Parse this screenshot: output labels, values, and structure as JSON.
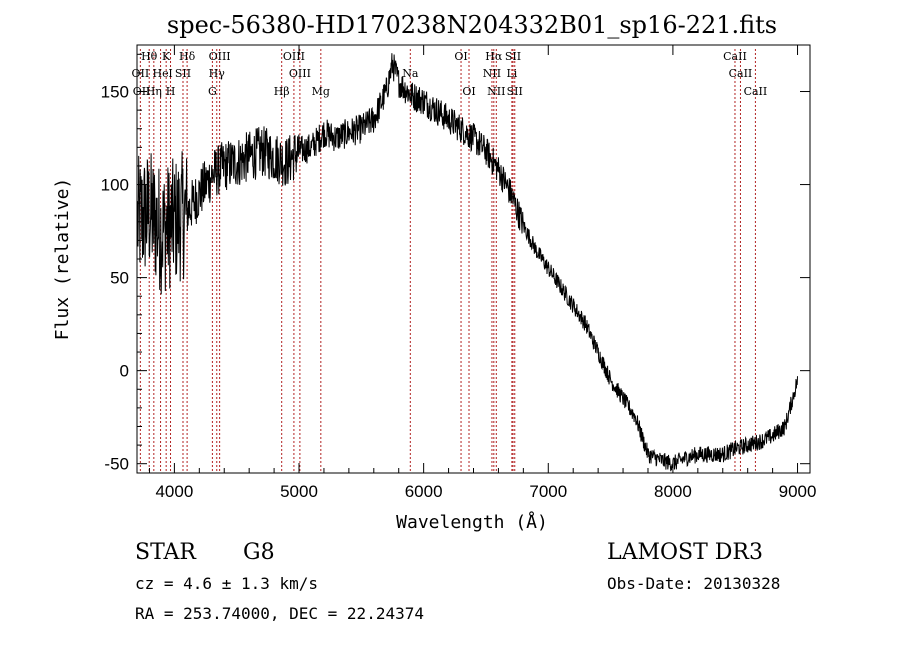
{
  "chart_data": {
    "type": "line",
    "title": "spec-56380-HD170238N204332B01_sp16-221.fits",
    "xlabel": "Wavelength (Å)",
    "ylabel": "Flux (relative)",
    "xlim": [
      3700,
      9100
    ],
    "ylim": [
      -55,
      175
    ],
    "xticks": [
      4000,
      5000,
      6000,
      7000,
      8000,
      9000
    ],
    "yticks": [
      -50,
      0,
      50,
      100,
      150
    ],
    "series": [
      {
        "name": "flux",
        "color": "#000000",
        "x": [
          3700,
          3800,
          3900,
          4000,
          4100,
          4200,
          4300,
          4400,
          4500,
          4600,
          4700,
          4800,
          4900,
          5000,
          5100,
          5200,
          5300,
          5400,
          5500,
          5600,
          5700,
          5750,
          5800,
          5900,
          6000,
          6100,
          6200,
          6300,
          6400,
          6500,
          6600,
          6700,
          6800,
          6900,
          7000,
          7100,
          7200,
          7300,
          7400,
          7500,
          7600,
          7700,
          7800,
          7900,
          8000,
          8100,
          8200,
          8300,
          8400,
          8500,
          8600,
          8700,
          8800,
          8900,
          9000
        ],
        "y": [
          80,
          85,
          75,
          80,
          85,
          95,
          105,
          110,
          112,
          115,
          118,
          115,
          112,
          118,
          120,
          128,
          125,
          128,
          130,
          135,
          150,
          165,
          155,
          148,
          145,
          140,
          135,
          130,
          125,
          118,
          108,
          95,
          78,
          65,
          55,
          45,
          35,
          25,
          10,
          -5,
          -15,
          -25,
          -45,
          -48,
          -50,
          -47,
          -45,
          -45,
          -45,
          -42,
          -40,
          -38,
          -35,
          -30,
          -5
        ]
      }
    ],
    "line_labels": [
      {
        "text": "Hθ",
        "x": 3798,
        "row": 0,
        "color": "#000000"
      },
      {
        "text": "K",
        "x": 3934,
        "row": 0,
        "color": "#000000"
      },
      {
        "text": "Hδ",
        "x": 4102,
        "row": 0,
        "color": "#000000"
      },
      {
        "text": "OIII",
        "x": 4363,
        "row": 0,
        "color": "#000000"
      },
      {
        "text": "OIII",
        "x": 4959,
        "row": 0,
        "color": "#000000"
      },
      {
        "text": "OI",
        "x": 6300,
        "row": 0,
        "color": "#000000"
      },
      {
        "text": "Hα",
        "x": 6563,
        "row": 0,
        "color": "#000000"
      },
      {
        "text": "SII",
        "x": 6717,
        "row": 0,
        "color": "#000000"
      },
      {
        "text": "CaII",
        "x": 8498,
        "row": 0,
        "color": "#000000"
      },
      {
        "text": "OII",
        "x": 3727,
        "row": 1,
        "color": "#000000"
      },
      {
        "text": "He",
        "x": 3889,
        "row": 1,
        "color": "#000000"
      },
      {
        "text": "I",
        "x": 3969,
        "row": 1,
        "color": "#000000"
      },
      {
        "text": "SII",
        "x": 4069,
        "row": 1,
        "color": "#000000"
      },
      {
        "text": "Hγ",
        "x": 4340,
        "row": 1,
        "color": "#000000"
      },
      {
        "text": "OIII",
        "x": 5007,
        "row": 1,
        "color": "#000000"
      },
      {
        "text": "Na",
        "x": 5893,
        "row": 1,
        "color": "#000000"
      },
      {
        "text": "NII",
        "x": 6548,
        "row": 1,
        "color": "#000000"
      },
      {
        "text": "Li",
        "x": 6708,
        "row": 1,
        "color": "#000000"
      },
      {
        "text": "CaII",
        "x": 8542,
        "row": 1,
        "color": "#000000"
      },
      {
        "text": "OII",
        "x": 3737,
        "row": 2,
        "color": "#000000"
      },
      {
        "text": "Hη",
        "x": 3835,
        "row": 2,
        "color": "#000000"
      },
      {
        "text": "H",
        "x": 3969,
        "row": 2,
        "color": "#000000"
      },
      {
        "text": "G",
        "x": 4305,
        "row": 2,
        "color": "#000000"
      },
      {
        "text": "Hβ",
        "x": 4861,
        "row": 2,
        "color": "#000000"
      },
      {
        "text": "Mg",
        "x": 5175,
        "row": 2,
        "color": "#000000"
      },
      {
        "text": "OI",
        "x": 6364,
        "row": 2,
        "color": "#000000"
      },
      {
        "text": "NII",
        "x": 6583,
        "row": 2,
        "color": "#000000"
      },
      {
        "text": "SII",
        "x": 6731,
        "row": 2,
        "color": "#000000"
      },
      {
        "text": "CaII",
        "x": 8662,
        "row": 2,
        "color": "#000000"
      }
    ],
    "vlines": [
      3727,
      3798,
      3835,
      3889,
      3934,
      3969,
      4069,
      4102,
      4305,
      4340,
      4363,
      4861,
      4959,
      5007,
      5175,
      5893,
      6300,
      6364,
      6548,
      6563,
      6583,
      6708,
      6717,
      6731,
      8498,
      8542,
      8662
    ],
    "vline_color": "#b22222"
  },
  "info": {
    "object_class": "STAR",
    "subclass": "G8",
    "survey": "LAMOST DR3",
    "cz": "cz = 4.6 ± 1.3 km/s",
    "obs_date": "Obs-Date: 20130328",
    "coords": "RA = 253.74000, DEC =  22.24374"
  }
}
